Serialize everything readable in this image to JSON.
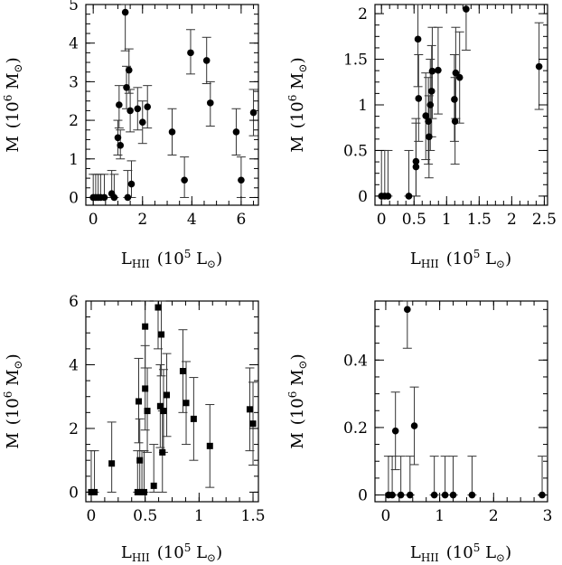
{
  "chart_data": [
    {
      "type": "scatter",
      "xlabel": {
        "main": "L",
        "sub": "HII",
        "tail": "(10",
        "sup": "5",
        "unit": " L",
        "unit_sub": "⊙",
        "close": ")"
      },
      "ylabel": {
        "main": "M",
        "tail": "(10",
        "sup": "6",
        "unit": " M",
        "unit_sub": "⊙",
        "close": ")"
      },
      "xlim": [
        -0.3,
        6.7
      ],
      "ylim": [
        -0.2,
        5.0
      ],
      "xticks": [
        0,
        2,
        4,
        6
      ],
      "yticks": [
        0,
        1,
        2,
        3,
        4,
        5
      ],
      "marker": "circle",
      "points": [
        {
          "x": 0.0,
          "y": 0.0,
          "lo": 0.0,
          "hi": 0.6
        },
        {
          "x": 0.1,
          "y": 0.0,
          "lo": 0.0,
          "hi": 0.6
        },
        {
          "x": 0.2,
          "y": 0.0,
          "lo": 0.0,
          "hi": 0.6
        },
        {
          "x": 0.3,
          "y": 0.0,
          "lo": 0.0,
          "hi": 0.6
        },
        {
          "x": 0.45,
          "y": 0.0,
          "lo": 0.0,
          "hi": 0.6
        },
        {
          "x": 0.75,
          "y": 0.1,
          "lo": 0.0,
          "hi": 0.7
        },
        {
          "x": 0.85,
          "y": 0.0,
          "lo": 0.0,
          "hi": 0.6
        },
        {
          "x": 1.0,
          "y": 1.55,
          "lo": 1.1,
          "hi": 2.0
        },
        {
          "x": 1.05,
          "y": 2.4,
          "lo": 1.8,
          "hi": 2.9
        },
        {
          "x": 1.1,
          "y": 1.35,
          "lo": 1.0,
          "hi": 1.75
        },
        {
          "x": 1.3,
          "y": 4.8,
          "lo": 3.8,
          "hi": 5.0
        },
        {
          "x": 1.35,
          "y": 2.85,
          "lo": 2.3,
          "hi": 3.4
        },
        {
          "x": 1.4,
          "y": 0.0,
          "lo": 0.0,
          "hi": 0.7
        },
        {
          "x": 1.45,
          "y": 3.3,
          "lo": 2.7,
          "hi": 3.85
        },
        {
          "x": 1.5,
          "y": 2.25,
          "lo": 1.7,
          "hi": 2.8
        },
        {
          "x": 1.55,
          "y": 0.35,
          "lo": 0.0,
          "hi": 0.95
        },
        {
          "x": 1.8,
          "y": 2.3,
          "lo": 1.75,
          "hi": 2.85
        },
        {
          "x": 2.0,
          "y": 1.95,
          "lo": 1.4,
          "hi": 2.5
        },
        {
          "x": 2.2,
          "y": 2.35,
          "lo": 1.8,
          "hi": 2.9
        },
        {
          "x": 3.2,
          "y": 1.7,
          "lo": 1.1,
          "hi": 2.3
        },
        {
          "x": 3.7,
          "y": 0.45,
          "lo": 0.0,
          "hi": 1.05
        },
        {
          "x": 3.95,
          "y": 3.75,
          "lo": 3.2,
          "hi": 4.35
        },
        {
          "x": 4.6,
          "y": 3.55,
          "lo": 2.95,
          "hi": 4.15
        },
        {
          "x": 4.75,
          "y": 2.45,
          "lo": 1.85,
          "hi": 3.0
        },
        {
          "x": 5.8,
          "y": 1.7,
          "lo": 1.1,
          "hi": 2.3
        },
        {
          "x": 6.0,
          "y": 0.45,
          "lo": 0.0,
          "hi": 1.05
        },
        {
          "x": 6.5,
          "y": 2.2,
          "lo": 1.6,
          "hi": 2.8
        }
      ]
    },
    {
      "type": "scatter",
      "xlabel": {
        "main": "L",
        "sub": "HII",
        "tail": "(10",
        "sup": "5",
        "unit": " L",
        "unit_sub": "⊙",
        "close": ")"
      },
      "ylabel": {
        "main": "M",
        "tail": "(10",
        "sup": "6",
        "unit": " M",
        "unit_sub": "⊙",
        "close": ")"
      },
      "xlim": [
        -0.1,
        2.55
      ],
      "ylim": [
        -0.1,
        2.1
      ],
      "xticks": [
        0,
        0.5,
        1,
        1.5,
        2,
        2.5
      ],
      "xticklabels": [
        "0",
        "0.5",
        "1",
        "1.5",
        "2",
        "2.5"
      ],
      "yticks": [
        0,
        0.5,
        1,
        1.5,
        2
      ],
      "yticklabels": [
        "0",
        "0.5",
        "1",
        "1.5",
        "2"
      ],
      "marker": "circle",
      "points": [
        {
          "x": 0.0,
          "y": 0.0,
          "lo": 0.0,
          "hi": 0.5
        },
        {
          "x": 0.05,
          "y": 0.0,
          "lo": 0.0,
          "hi": 0.5
        },
        {
          "x": 0.1,
          "y": 0.0,
          "lo": 0.0,
          "hi": 0.5
        },
        {
          "x": 0.42,
          "y": 0.0,
          "lo": 0.0,
          "hi": 0.5
        },
        {
          "x": 0.53,
          "y": 0.32,
          "lo": 0.0,
          "hi": 0.8
        },
        {
          "x": 0.53,
          "y": 0.38,
          "lo": 0.0,
          "hi": 0.85
        },
        {
          "x": 0.56,
          "y": 1.72,
          "lo": 1.2,
          "hi": 2.1
        },
        {
          "x": 0.57,
          "y": 1.07,
          "lo": 0.6,
          "hi": 1.55
        },
        {
          "x": 0.68,
          "y": 0.88,
          "lo": 0.4,
          "hi": 1.35
        },
        {
          "x": 0.72,
          "y": 0.82,
          "lo": 0.35,
          "hi": 1.3
        },
        {
          "x": 0.73,
          "y": 0.65,
          "lo": 0.2,
          "hi": 1.1
        },
        {
          "x": 0.75,
          "y": 1.0,
          "lo": 0.5,
          "hi": 1.5
        },
        {
          "x": 0.77,
          "y": 1.15,
          "lo": 0.65,
          "hi": 1.65
        },
        {
          "x": 0.78,
          "y": 1.37,
          "lo": 0.85,
          "hi": 1.85
        },
        {
          "x": 0.87,
          "y": 1.38,
          "lo": 0.9,
          "hi": 1.85
        },
        {
          "x": 1.12,
          "y": 1.06,
          "lo": 0.6,
          "hi": 1.55
        },
        {
          "x": 1.13,
          "y": 0.82,
          "lo": 0.35,
          "hi": 1.3
        },
        {
          "x": 1.14,
          "y": 1.35,
          "lo": 0.85,
          "hi": 1.85
        },
        {
          "x": 1.2,
          "y": 1.3,
          "lo": 0.8,
          "hi": 1.8
        },
        {
          "x": 1.3,
          "y": 2.05,
          "lo": 1.6,
          "hi": 2.1
        },
        {
          "x": 2.42,
          "y": 1.42,
          "lo": 0.95,
          "hi": 1.9
        }
      ]
    },
    {
      "type": "scatter",
      "xlabel": {
        "main": "L",
        "sub": "HII",
        "tail": "(10",
        "sup": "5",
        "unit": " L",
        "unit_sub": "⊙",
        "close": ")"
      },
      "ylabel": {
        "main": "M",
        "tail": "(10",
        "sup": "6",
        "unit": " M",
        "unit_sub": "⊙",
        "close": ")"
      },
      "xlim": [
        -0.05,
        1.55
      ],
      "ylim": [
        -0.3,
        6.0
      ],
      "xticks": [
        0,
        0.5,
        1,
        1.5
      ],
      "xticklabels": [
        "0",
        "0.5",
        "1",
        "1.5"
      ],
      "yticks": [
        0,
        2,
        4,
        6
      ],
      "marker": "square",
      "points": [
        {
          "x": 0.0,
          "y": 0.0,
          "lo": 0.0,
          "hi": 1.3
        },
        {
          "x": 0.03,
          "y": 0.0,
          "lo": 0.0,
          "hi": 1.3
        },
        {
          "x": 0.19,
          "y": 0.9,
          "lo": 0.0,
          "hi": 2.2
        },
        {
          "x": 0.43,
          "y": 0.0,
          "lo": 0.0,
          "hi": 1.3
        },
        {
          "x": 0.44,
          "y": 2.85,
          "lo": 1.55,
          "hi": 4.2
        },
        {
          "x": 0.45,
          "y": 1.0,
          "lo": 0.0,
          "hi": 2.3
        },
        {
          "x": 0.47,
          "y": 0.0,
          "lo": 0.0,
          "hi": 1.3
        },
        {
          "x": 0.49,
          "y": 0.0,
          "lo": 0.0,
          "hi": 1.3
        },
        {
          "x": 0.5,
          "y": 5.2,
          "lo": 3.9,
          "hi": 6.0
        },
        {
          "x": 0.5,
          "y": 3.25,
          "lo": 1.95,
          "hi": 4.6
        },
        {
          "x": 0.52,
          "y": 2.55,
          "lo": 1.25,
          "hi": 3.9
        },
        {
          "x": 0.58,
          "y": 0.2,
          "lo": 0.0,
          "hi": 1.5
        },
        {
          "x": 0.62,
          "y": 5.8,
          "lo": 4.5,
          "hi": 6.0
        },
        {
          "x": 0.64,
          "y": 2.7,
          "lo": 1.4,
          "hi": 4.0
        },
        {
          "x": 0.65,
          "y": 4.95,
          "lo": 3.65,
          "hi": 6.0
        },
        {
          "x": 0.66,
          "y": 1.25,
          "lo": 0.0,
          "hi": 2.55
        },
        {
          "x": 0.67,
          "y": 2.55,
          "lo": 1.25,
          "hi": 3.85
        },
        {
          "x": 0.7,
          "y": 3.05,
          "lo": 1.75,
          "hi": 4.35
        },
        {
          "x": 0.85,
          "y": 3.8,
          "lo": 2.5,
          "hi": 5.1
        },
        {
          "x": 0.88,
          "y": 2.8,
          "lo": 1.5,
          "hi": 4.1
        },
        {
          "x": 0.95,
          "y": 2.3,
          "lo": 1.0,
          "hi": 3.6
        },
        {
          "x": 1.1,
          "y": 1.45,
          "lo": 0.15,
          "hi": 2.75
        },
        {
          "x": 1.47,
          "y": 2.6,
          "lo": 1.3,
          "hi": 3.9
        },
        {
          "x": 1.5,
          "y": 2.15,
          "lo": 0.85,
          "hi": 3.45
        }
      ]
    },
    {
      "type": "scatter",
      "xlabel": {
        "main": "L",
        "sub": "HII",
        "tail": "(10",
        "sup": "5",
        "unit": " L",
        "unit_sub": "⊙",
        "close": ")"
      },
      "ylabel": {
        "main": "M",
        "tail": "(10",
        "sup": "6",
        "unit": " M",
        "unit_sub": "⊙",
        "close": ")"
      },
      "xlim": [
        -0.2,
        3.0
      ],
      "ylim": [
        -0.02,
        0.575
      ],
      "xticks": [
        0,
        1,
        2,
        3
      ],
      "yticks": [
        0,
        0.2,
        0.4
      ],
      "yticklabels": [
        "0",
        "0.2",
        "0.4"
      ],
      "marker": "circle",
      "points": [
        {
          "x": 0.05,
          "y": 0.0,
          "lo": 0.0,
          "hi": 0.115
        },
        {
          "x": 0.12,
          "y": 0.0,
          "lo": 0.0,
          "hi": 0.115
        },
        {
          "x": 0.18,
          "y": 0.19,
          "lo": 0.075,
          "hi": 0.305
        },
        {
          "x": 0.28,
          "y": 0.0,
          "lo": 0.0,
          "hi": 0.115
        },
        {
          "x": 0.4,
          "y": 0.55,
          "lo": 0.435,
          "hi": 0.575
        },
        {
          "x": 0.45,
          "y": 0.0,
          "lo": 0.0,
          "hi": 0.115
        },
        {
          "x": 0.53,
          "y": 0.205,
          "lo": 0.09,
          "hi": 0.32
        },
        {
          "x": 0.9,
          "y": 0.0,
          "lo": 0.0,
          "hi": 0.115
        },
        {
          "x": 1.1,
          "y": 0.0,
          "lo": 0.0,
          "hi": 0.115
        },
        {
          "x": 1.25,
          "y": 0.0,
          "lo": 0.0,
          "hi": 0.115
        },
        {
          "x": 1.6,
          "y": 0.0,
          "lo": 0.0,
          "hi": 0.115
        },
        {
          "x": 2.9,
          "y": 0.0,
          "lo": 0.0,
          "hi": 0.115
        }
      ]
    }
  ]
}
